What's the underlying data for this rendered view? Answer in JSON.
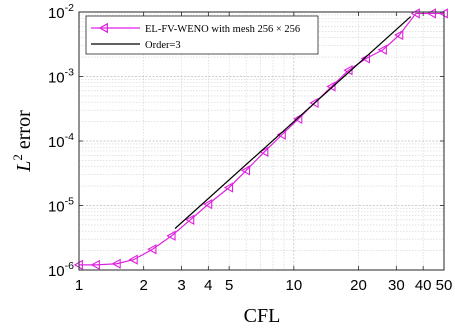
{
  "chart_data": {
    "type": "line",
    "xscale": "log",
    "yscale": "log",
    "xlim": [
      1,
      50
    ],
    "ylim": [
      1e-06,
      0.01
    ],
    "grid": true,
    "minor_grid": true,
    "legend_position": "top-left",
    "xlabel": "CFL",
    "ylabel": "L² error",
    "ylabel_base": "L",
    "ylabel_sup": "2",
    "ylabel_rest": " error",
    "xticks": [
      1,
      2,
      3,
      4,
      5,
      10,
      20,
      30,
      40,
      50
    ],
    "xtick_labels": [
      "1",
      "2",
      "3",
      "4",
      "5",
      "10",
      "20",
      "30",
      "40",
      "50"
    ],
    "yticks": [
      1e-06,
      1e-05,
      0.0001,
      0.001,
      0.01
    ],
    "ytick_labels": [
      {
        "base": "10",
        "exp": "-6"
      },
      {
        "base": "10",
        "exp": "-5"
      },
      {
        "base": "10",
        "exp": "-4"
      },
      {
        "base": "10",
        "exp": "-3"
      },
      {
        "base": "10",
        "exp": "-2"
      }
    ],
    "series": [
      {
        "name": "EL-FV-WENO with mesh 256 × 256",
        "color": "#e020e0",
        "marker": "triangle-left",
        "x": [
          1.0,
          1.2,
          1.5,
          1.8,
          2.2,
          2.7,
          3.3,
          4.0,
          5.0,
          6.0,
          7.3,
          8.8,
          10.5,
          12.5,
          15.0,
          18.0,
          21.7,
          26.0,
          31.0,
          37.0,
          44.0,
          50.0
        ],
        "y": [
          1.2e-06,
          1.2e-06,
          1.25e-06,
          1.45e-06,
          2.1e-06,
          3.4e-06,
          6e-06,
          1.05e-05,
          1.9e-05,
          3.5e-05,
          6.8e-05,
          0.000125,
          0.00022,
          0.00039,
          0.0007,
          0.00125,
          0.0019,
          0.0026,
          0.0044,
          0.0095,
          0.0095,
          0.0095
        ]
      },
      {
        "name": "Order=3",
        "color": "#000000",
        "marker": "none",
        "x": [
          2.8,
          35.0
        ],
        "y": [
          4.4e-06,
          0.0085
        ]
      }
    ]
  }
}
